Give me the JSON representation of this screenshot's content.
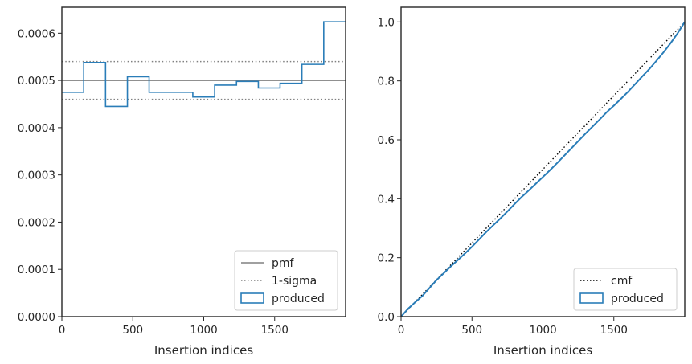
{
  "chart_data": [
    {
      "type": "step",
      "xlabel": "Insertion indices",
      "ylabel": "",
      "xlim": [
        0,
        2000
      ],
      "ylim": [
        0,
        0.000655
      ],
      "xticks": [
        0,
        500,
        1000,
        1500
      ],
      "xtick_labels": [
        "0",
        "500",
        "1000",
        "1500"
      ],
      "yticks": [
        0,
        0.0001,
        0.0002,
        0.0003,
        0.0004,
        0.0005,
        0.0006
      ],
      "ytick_labels": [
        "0.0000",
        "0.0001",
        "0.0002",
        "0.0003",
        "0.0004",
        "0.0005",
        "0.0006"
      ],
      "pmf": 0.0005,
      "sigma_band": [
        0.00046,
        0.00054
      ],
      "bin_edges": [
        0,
        154,
        308,
        462,
        615,
        769,
        923,
        1077,
        1231,
        1385,
        1538,
        1692,
        1846,
        2000
      ],
      "produced": [
        0.000475,
        0.000538,
        0.000445,
        0.000508,
        0.000475,
        0.000475,
        0.000465,
        0.00049,
        0.000498,
        0.000484,
        0.000494,
        0.000534,
        0.000624
      ],
      "legend": {
        "position": "lower right",
        "entries": [
          {
            "label": "pmf",
            "style": "solid-gray"
          },
          {
            "label": "1-sigma",
            "style": "dotted-gray"
          },
          {
            "label": "produced",
            "style": "step-blue"
          }
        ]
      },
      "colors": {
        "produced": "#2a7db8",
        "pmf": "#808080",
        "sigma": "#808080"
      }
    },
    {
      "type": "line",
      "xlabel": "Insertion indices",
      "ylabel": "",
      "xlim": [
        0,
        2000
      ],
      "ylim": [
        0,
        1.05
      ],
      "xticks": [
        0,
        500,
        1000,
        1500
      ],
      "xtick_labels": [
        "0",
        "500",
        "1000",
        "1500"
      ],
      "yticks": [
        0,
        0.2,
        0.4,
        0.6,
        0.8,
        1.0
      ],
      "ytick_labels": [
        "0.0",
        "0.2",
        "0.4",
        "0.6",
        "0.8",
        "1.0"
      ],
      "cmf": {
        "x": [
          0,
          2000
        ],
        "y": [
          0,
          1.0
        ]
      },
      "produced": {
        "x": [
          0,
          50,
          100,
          150,
          200,
          250,
          300,
          350,
          400,
          450,
          500,
          550,
          600,
          650,
          700,
          750,
          800,
          850,
          900,
          950,
          1000,
          1050,
          1100,
          1150,
          1200,
          1250,
          1300,
          1350,
          1400,
          1450,
          1500,
          1550,
          1600,
          1650,
          1700,
          1750,
          1800,
          1850,
          1900,
          1950,
          2000
        ],
        "y": [
          0,
          0.027,
          0.049,
          0.07,
          0.097,
          0.124,
          0.147,
          0.17,
          0.192,
          0.214,
          0.237,
          0.262,
          0.287,
          0.31,
          0.333,
          0.357,
          0.382,
          0.406,
          0.428,
          0.451,
          0.474,
          0.497,
          0.521,
          0.546,
          0.571,
          0.596,
          0.621,
          0.645,
          0.669,
          0.694,
          0.716,
          0.739,
          0.763,
          0.789,
          0.815,
          0.84,
          0.868,
          0.897,
          0.928,
          0.962,
          1.0
        ]
      },
      "legend": {
        "position": "lower right",
        "entries": [
          {
            "label": "cmf",
            "style": "dotted-black"
          },
          {
            "label": "produced",
            "style": "step-blue"
          }
        ]
      },
      "colors": {
        "produced": "#2a7db8",
        "cmf": "#000000"
      }
    }
  ]
}
